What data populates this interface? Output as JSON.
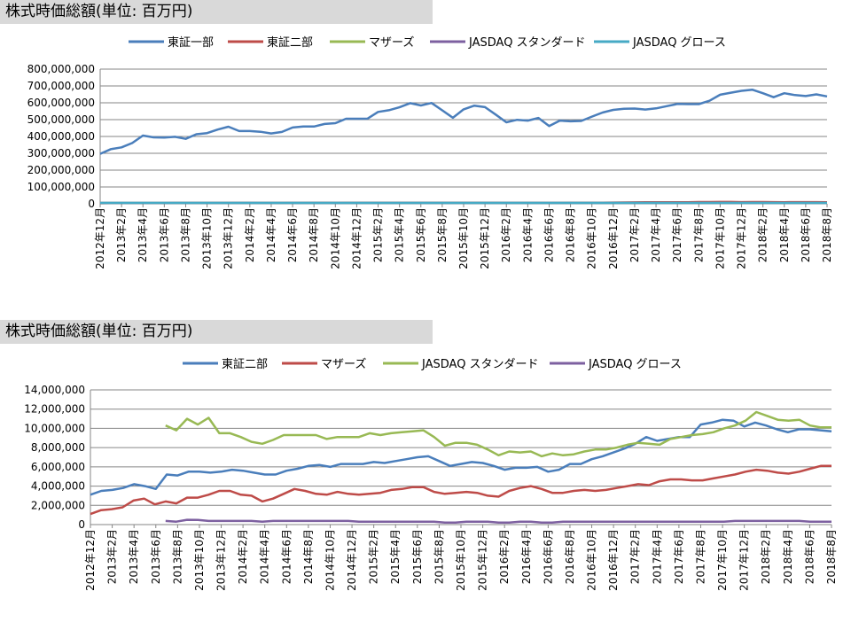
{
  "chart_data": [
    {
      "type": "line",
      "title": "株式時価総額(単位: 百万円)",
      "ylim": [
        0,
        800000000
      ],
      "yticks": [
        0,
        100000000,
        200000000,
        300000000,
        400000000,
        500000000,
        600000000,
        700000000,
        800000000
      ],
      "ytick_labels": [
        "0",
        "100,000,000",
        "200,000,000",
        "300,000,000",
        "400,000,000",
        "500,000,000",
        "600,000,000",
        "700,000,000",
        "800,000,000"
      ],
      "legend_position": "top",
      "grid": true,
      "x_labels": [
        "2012年12月",
        "2013年2月",
        "2013年4月",
        "2013年6月",
        "2013年8月",
        "2013年10月",
        "2013年12月",
        "2014年2月",
        "2014年4月",
        "2014年6月",
        "2014年8月",
        "2014年10月",
        "2014年12月",
        "2015年2月",
        "2015年4月",
        "2015年6月",
        "2015年8月",
        "2015年10月",
        "2015年12月",
        "2016年2月",
        "2016年4月",
        "2016年6月",
        "2016年8月",
        "2016年10月",
        "2016年12月",
        "2017年2月",
        "2017年4月",
        "2017年6月",
        "2017年8月",
        "2017年10月",
        "2017年12月",
        "2018年2月",
        "2018年4月",
        "2018年6月",
        "2018年8月"
      ],
      "series": [
        {
          "name": "東証一部",
          "color": "#4a7ebb",
          "values": [
            297000000,
            325000000,
            335000000,
            361000000,
            405000000,
            395000000,
            393000000,
            398000000,
            386000000,
            413000000,
            420000000,
            441000000,
            458000000,
            432000000,
            432000000,
            428000000,
            418000000,
            427000000,
            453000000,
            459000000,
            459000000,
            474000000,
            479000000,
            505000000,
            505000000,
            506000000,
            546000000,
            556000000,
            573000000,
            598000000,
            584000000,
            599000000,
            555000000,
            511000000,
            561000000,
            583000000,
            574000000,
            530000000,
            484000000,
            499000000,
            494000000,
            510000000,
            462000000,
            494000000,
            490000000,
            492000000,
            518000000,
            542000000,
            558000000,
            564000000,
            566000000,
            560000000,
            567000000,
            580000000,
            593000000,
            592000000,
            592000000,
            612000000,
            648000000,
            660000000,
            671000000,
            678000000,
            657000000,
            633000000,
            657000000,
            646000000,
            640000000,
            650000000,
            638000000
          ]
        },
        {
          "name": "東証二部",
          "color": "#be4b48",
          "values": [
            3100000,
            3500000,
            3600000,
            3800000,
            4200000,
            4000000,
            3700000,
            5200000,
            5100000,
            5500000,
            5500000,
            5400000,
            5500000,
            5700000,
            5600000,
            5400000,
            5200000,
            5200000,
            5600000,
            5800000,
            6100000,
            6200000,
            6000000,
            6300000,
            6300000,
            6300000,
            6500000,
            6400000,
            6600000,
            6800000,
            7000000,
            7100000,
            6600000,
            6100000,
            6300000,
            6500000,
            6400000,
            6100000,
            5700000,
            5900000,
            5900000,
            6000000,
            5500000,
            5700000,
            6300000,
            6300000,
            6800000,
            7100000,
            7500000,
            7900000,
            8400000,
            9100000,
            8700000,
            8900000,
            9100000,
            9100000,
            10400000,
            10600000,
            10900000,
            10800000,
            10200000,
            10600000,
            10300000,
            9900000,
            9600000,
            9900000,
            9900000,
            9800000,
            9700000
          ]
        },
        {
          "name": "マザーズ",
          "color": "#98b954",
          "values": []
        },
        {
          "name": "JASDAQ スタンダード",
          "color": "#7d60a0",
          "values": []
        },
        {
          "name": "JASDAQ グロース",
          "color": "#46aac5",
          "values": []
        }
      ]
    },
    {
      "type": "line",
      "title": "株式時価総額(単位: 百万円)",
      "ylim": [
        0,
        14000000
      ],
      "yticks": [
        0,
        2000000,
        4000000,
        6000000,
        8000000,
        10000000,
        12000000,
        14000000
      ],
      "ytick_labels": [
        "0",
        "2,000,000",
        "4,000,000",
        "6,000,000",
        "8,000,000",
        "10,000,000",
        "12,000,000",
        "14,000,000"
      ],
      "legend_position": "top",
      "grid": true,
      "x_labels": [
        "2012年12月",
        "2013年2月",
        "2013年4月",
        "2013年6月",
        "2013年8月",
        "2013年10月",
        "2013年12月",
        "2014年2月",
        "2014年4月",
        "2014年6月",
        "2014年8月",
        "2014年10月",
        "2014年12月",
        "2015年2月",
        "2015年4月",
        "2015年6月",
        "2015年8月",
        "2015年10月",
        "2015年12月",
        "2016年2月",
        "2016年4月",
        "2016年6月",
        "2016年8月",
        "2016年10月",
        "2016年12月",
        "2017年2月",
        "2017年4月",
        "2017年6月",
        "2017年8月",
        "2017年10月",
        "2017年12月",
        "2018年2月",
        "2018年4月",
        "2018年6月",
        "2018年8月"
      ],
      "series": [
        {
          "name": "東証二部",
          "color": "#4a7ebb",
          "values": [
            3100000,
            3500000,
            3600000,
            3800000,
            4200000,
            4000000,
            3700000,
            5200000,
            5100000,
            5500000,
            5500000,
            5400000,
            5500000,
            5700000,
            5600000,
            5400000,
            5200000,
            5200000,
            5600000,
            5800000,
            6100000,
            6200000,
            6000000,
            6300000,
            6300000,
            6300000,
            6500000,
            6400000,
            6600000,
            6800000,
            7000000,
            7100000,
            6600000,
            6100000,
            6300000,
            6500000,
            6400000,
            6100000,
            5700000,
            5900000,
            5900000,
            6000000,
            5500000,
            5700000,
            6300000,
            6300000,
            6800000,
            7100000,
            7500000,
            7900000,
            8400000,
            9100000,
            8700000,
            8900000,
            9100000,
            9100000,
            10400000,
            10600000,
            10900000,
            10800000,
            10200000,
            10600000,
            10300000,
            9900000,
            9600000,
            9900000,
            9900000,
            9800000,
            9700000
          ]
        },
        {
          "name": "マザーズ",
          "color": "#be4b48",
          "values": [
            1100000,
            1500000,
            1600000,
            1800000,
            2500000,
            2700000,
            2100000,
            2400000,
            2200000,
            2800000,
            2800000,
            3100000,
            3500000,
            3500000,
            3100000,
            3000000,
            2400000,
            2700000,
            3200000,
            3700000,
            3500000,
            3200000,
            3100000,
            3400000,
            3200000,
            3100000,
            3200000,
            3300000,
            3600000,
            3700000,
            3900000,
            3900000,
            3400000,
            3200000,
            3300000,
            3400000,
            3300000,
            3000000,
            2900000,
            3500000,
            3800000,
            4000000,
            3700000,
            3300000,
            3300000,
            3500000,
            3600000,
            3500000,
            3600000,
            3800000,
            4000000,
            4200000,
            4100000,
            4500000,
            4700000,
            4700000,
            4600000,
            4600000,
            4800000,
            5000000,
            5200000,
            5500000,
            5700000,
            5600000,
            5400000,
            5300000,
            5500000,
            5800000,
            6100000,
            6100000
          ]
        },
        {
          "name": "JASDAQ スタンダード",
          "color": "#98b954",
          "values": [
            null,
            null,
            null,
            null,
            null,
            null,
            null,
            10300000,
            9800000,
            11000000,
            10400000,
            11100000,
            9500000,
            9500000,
            9100000,
            8600000,
            8400000,
            8800000,
            9300000,
            9300000,
            9300000,
            9300000,
            8900000,
            9100000,
            9100000,
            9100000,
            9500000,
            9300000,
            9500000,
            9600000,
            9700000,
            9800000,
            9100000,
            8200000,
            8500000,
            8500000,
            8300000,
            7800000,
            7200000,
            7600000,
            7500000,
            7600000,
            7100000,
            7400000,
            7200000,
            7300000,
            7600000,
            7800000,
            7800000,
            8000000,
            8300000,
            8500000,
            8400000,
            8300000,
            8900000,
            9100000,
            9300000,
            9400000,
            9600000,
            10000000,
            10300000,
            10800000,
            11700000,
            11300000,
            10900000,
            10800000,
            10900000,
            10300000,
            10100000,
            10100000
          ]
        },
        {
          "name": "JASDAQ グロース",
          "color": "#7d60a0",
          "values": [
            null,
            null,
            null,
            null,
            null,
            null,
            null,
            380000,
            300000,
            500000,
            480000,
            380000,
            380000,
            380000,
            380000,
            380000,
            300000,
            380000,
            380000,
            380000,
            380000,
            380000,
            380000,
            380000,
            380000,
            300000,
            300000,
            300000,
            300000,
            300000,
            300000,
            300000,
            300000,
            200000,
            200000,
            300000,
            300000,
            300000,
            200000,
            200000,
            300000,
            300000,
            200000,
            200000,
            300000,
            300000,
            300000,
            300000,
            300000,
            300000,
            300000,
            300000,
            300000,
            300000,
            300000,
            300000,
            300000,
            300000,
            300000,
            300000,
            380000,
            380000,
            380000,
            380000,
            380000,
            380000,
            380000,
            300000,
            300000,
            300000
          ]
        }
      ]
    }
  ]
}
